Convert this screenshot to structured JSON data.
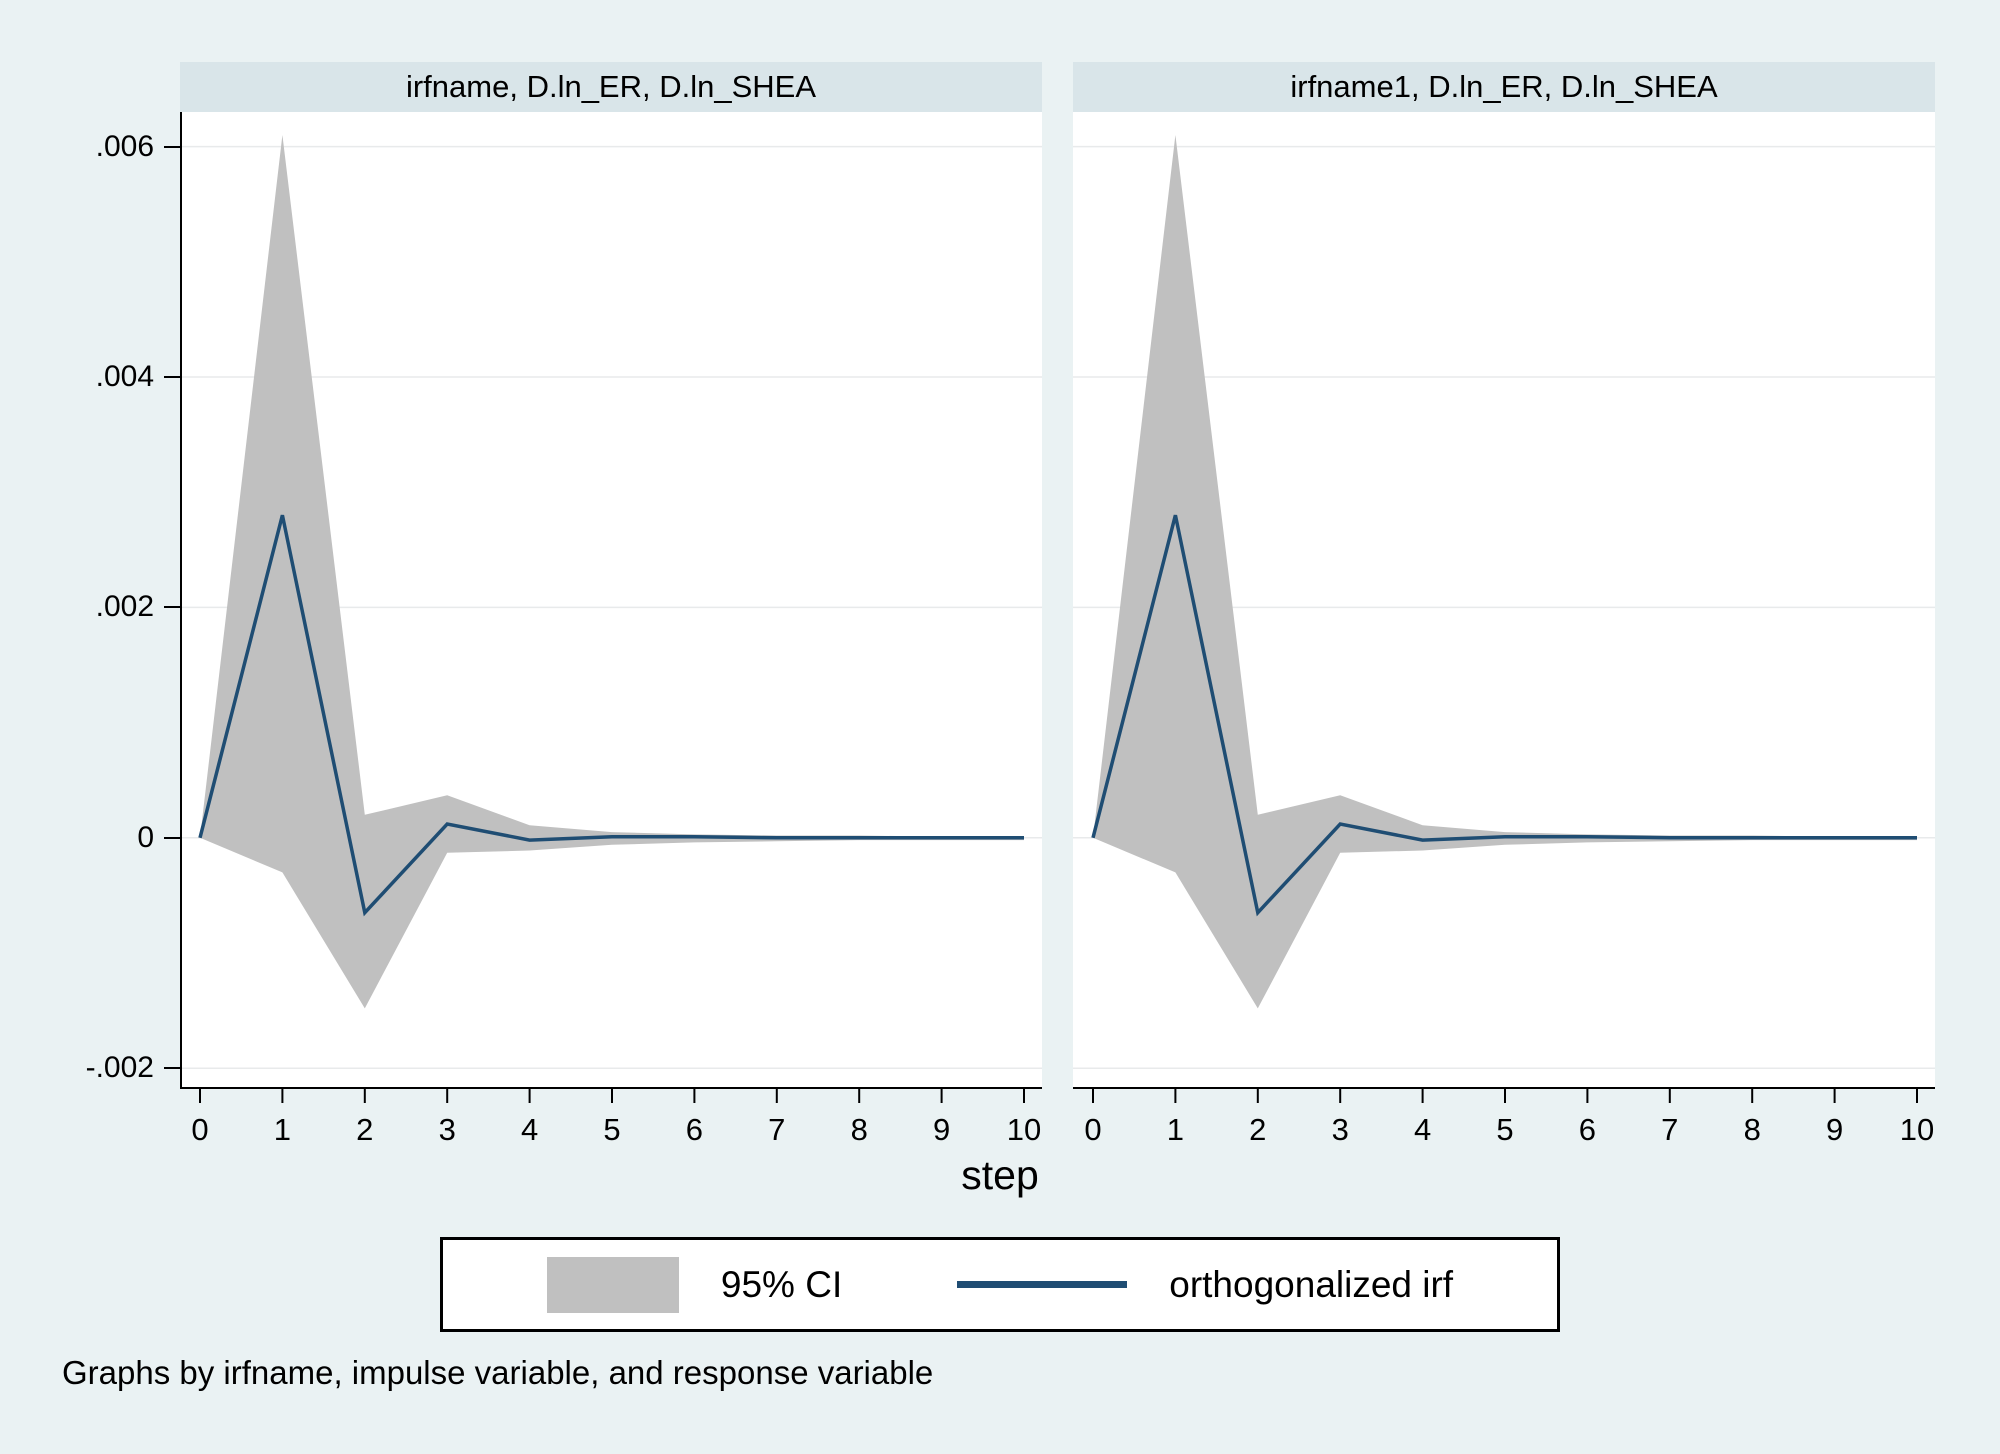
{
  "page": {
    "background": "#eaf2f3"
  },
  "colors": {
    "band": "#c0c0c0",
    "line": "#1f4d73",
    "grid": "#e8eaeb",
    "header_bg": "#d9e5e9",
    "plot_bg": "#ffffff",
    "axis": "#000000"
  },
  "x_axis_title": "step",
  "caption": "Graphs by irfname, impulse variable, and response variable",
  "legend": {
    "ci_label": "95% CI",
    "irf_label": "orthogonalized irf"
  },
  "chart_data": [
    {
      "type": "line",
      "panel_title": "irfname, D.ln_ER, D.ln_SHEA",
      "xlabel": "step",
      "x": [
        0,
        1,
        2,
        3,
        4,
        5,
        6,
        7,
        8,
        9,
        10
      ],
      "series": [
        {
          "name": "orthogonalized irf",
          "values": [
            0,
            0.0028,
            -0.00065,
            0.00012,
            -2e-05,
            1e-05,
            1e-05,
            0,
            0,
            0,
            0
          ]
        },
        {
          "name": "95% CI upper",
          "values": [
            0,
            0.0061,
            0.0002,
            0.00037,
            0.00011,
            5e-05,
            3e-05,
            2e-05,
            2e-05,
            1e-05,
            1e-05
          ]
        },
        {
          "name": "95% CI lower",
          "values": [
            0,
            -0.0003,
            -0.00148,
            -0.00013,
            -0.00011,
            -6e-05,
            -4e-05,
            -3e-05,
            -2e-05,
            -2e-05,
            -2e-05
          ]
        }
      ],
      "ylim": [
        -0.00218,
        0.0063
      ],
      "yticks": [
        {
          "label": ".006",
          "value": 0.006
        },
        {
          "label": ".004",
          "value": 0.004
        },
        {
          "label": ".002",
          "value": 0.002
        },
        {
          "label": "0",
          "value": 0
        },
        {
          "label": "-.002",
          "value": -0.002
        }
      ],
      "xticks": [
        "0",
        "1",
        "2",
        "3",
        "4",
        "5",
        "6",
        "7",
        "8",
        "9",
        "10"
      ],
      "grid": true,
      "legend_position": "bottom"
    },
    {
      "type": "line",
      "panel_title": "irfname1, D.ln_ER, D.ln_SHEA",
      "xlabel": "step",
      "x": [
        0,
        1,
        2,
        3,
        4,
        5,
        6,
        7,
        8,
        9,
        10
      ],
      "series": [
        {
          "name": "orthogonalized irf",
          "values": [
            0,
            0.0028,
            -0.00065,
            0.00012,
            -2e-05,
            1e-05,
            1e-05,
            0,
            0,
            0,
            0
          ]
        },
        {
          "name": "95% CI upper",
          "values": [
            0,
            0.0061,
            0.0002,
            0.00037,
            0.00011,
            5e-05,
            3e-05,
            2e-05,
            2e-05,
            1e-05,
            1e-05
          ]
        },
        {
          "name": "95% CI lower",
          "values": [
            0,
            -0.0003,
            -0.00148,
            -0.00013,
            -0.00011,
            -6e-05,
            -4e-05,
            -3e-05,
            -2e-05,
            -2e-05,
            -2e-05
          ]
        }
      ],
      "ylim": [
        -0.00218,
        0.0063
      ],
      "yticks": [
        {
          "label": ".006",
          "value": 0.006
        },
        {
          "label": ".004",
          "value": 0.004
        },
        {
          "label": ".002",
          "value": 0.002
        },
        {
          "label": "0",
          "value": 0
        },
        {
          "label": "-.002",
          "value": -0.002
        }
      ],
      "xticks": [
        "0",
        "1",
        "2",
        "3",
        "4",
        "5",
        "6",
        "7",
        "8",
        "9",
        "10"
      ],
      "grid": true,
      "legend_position": "bottom"
    }
  ]
}
